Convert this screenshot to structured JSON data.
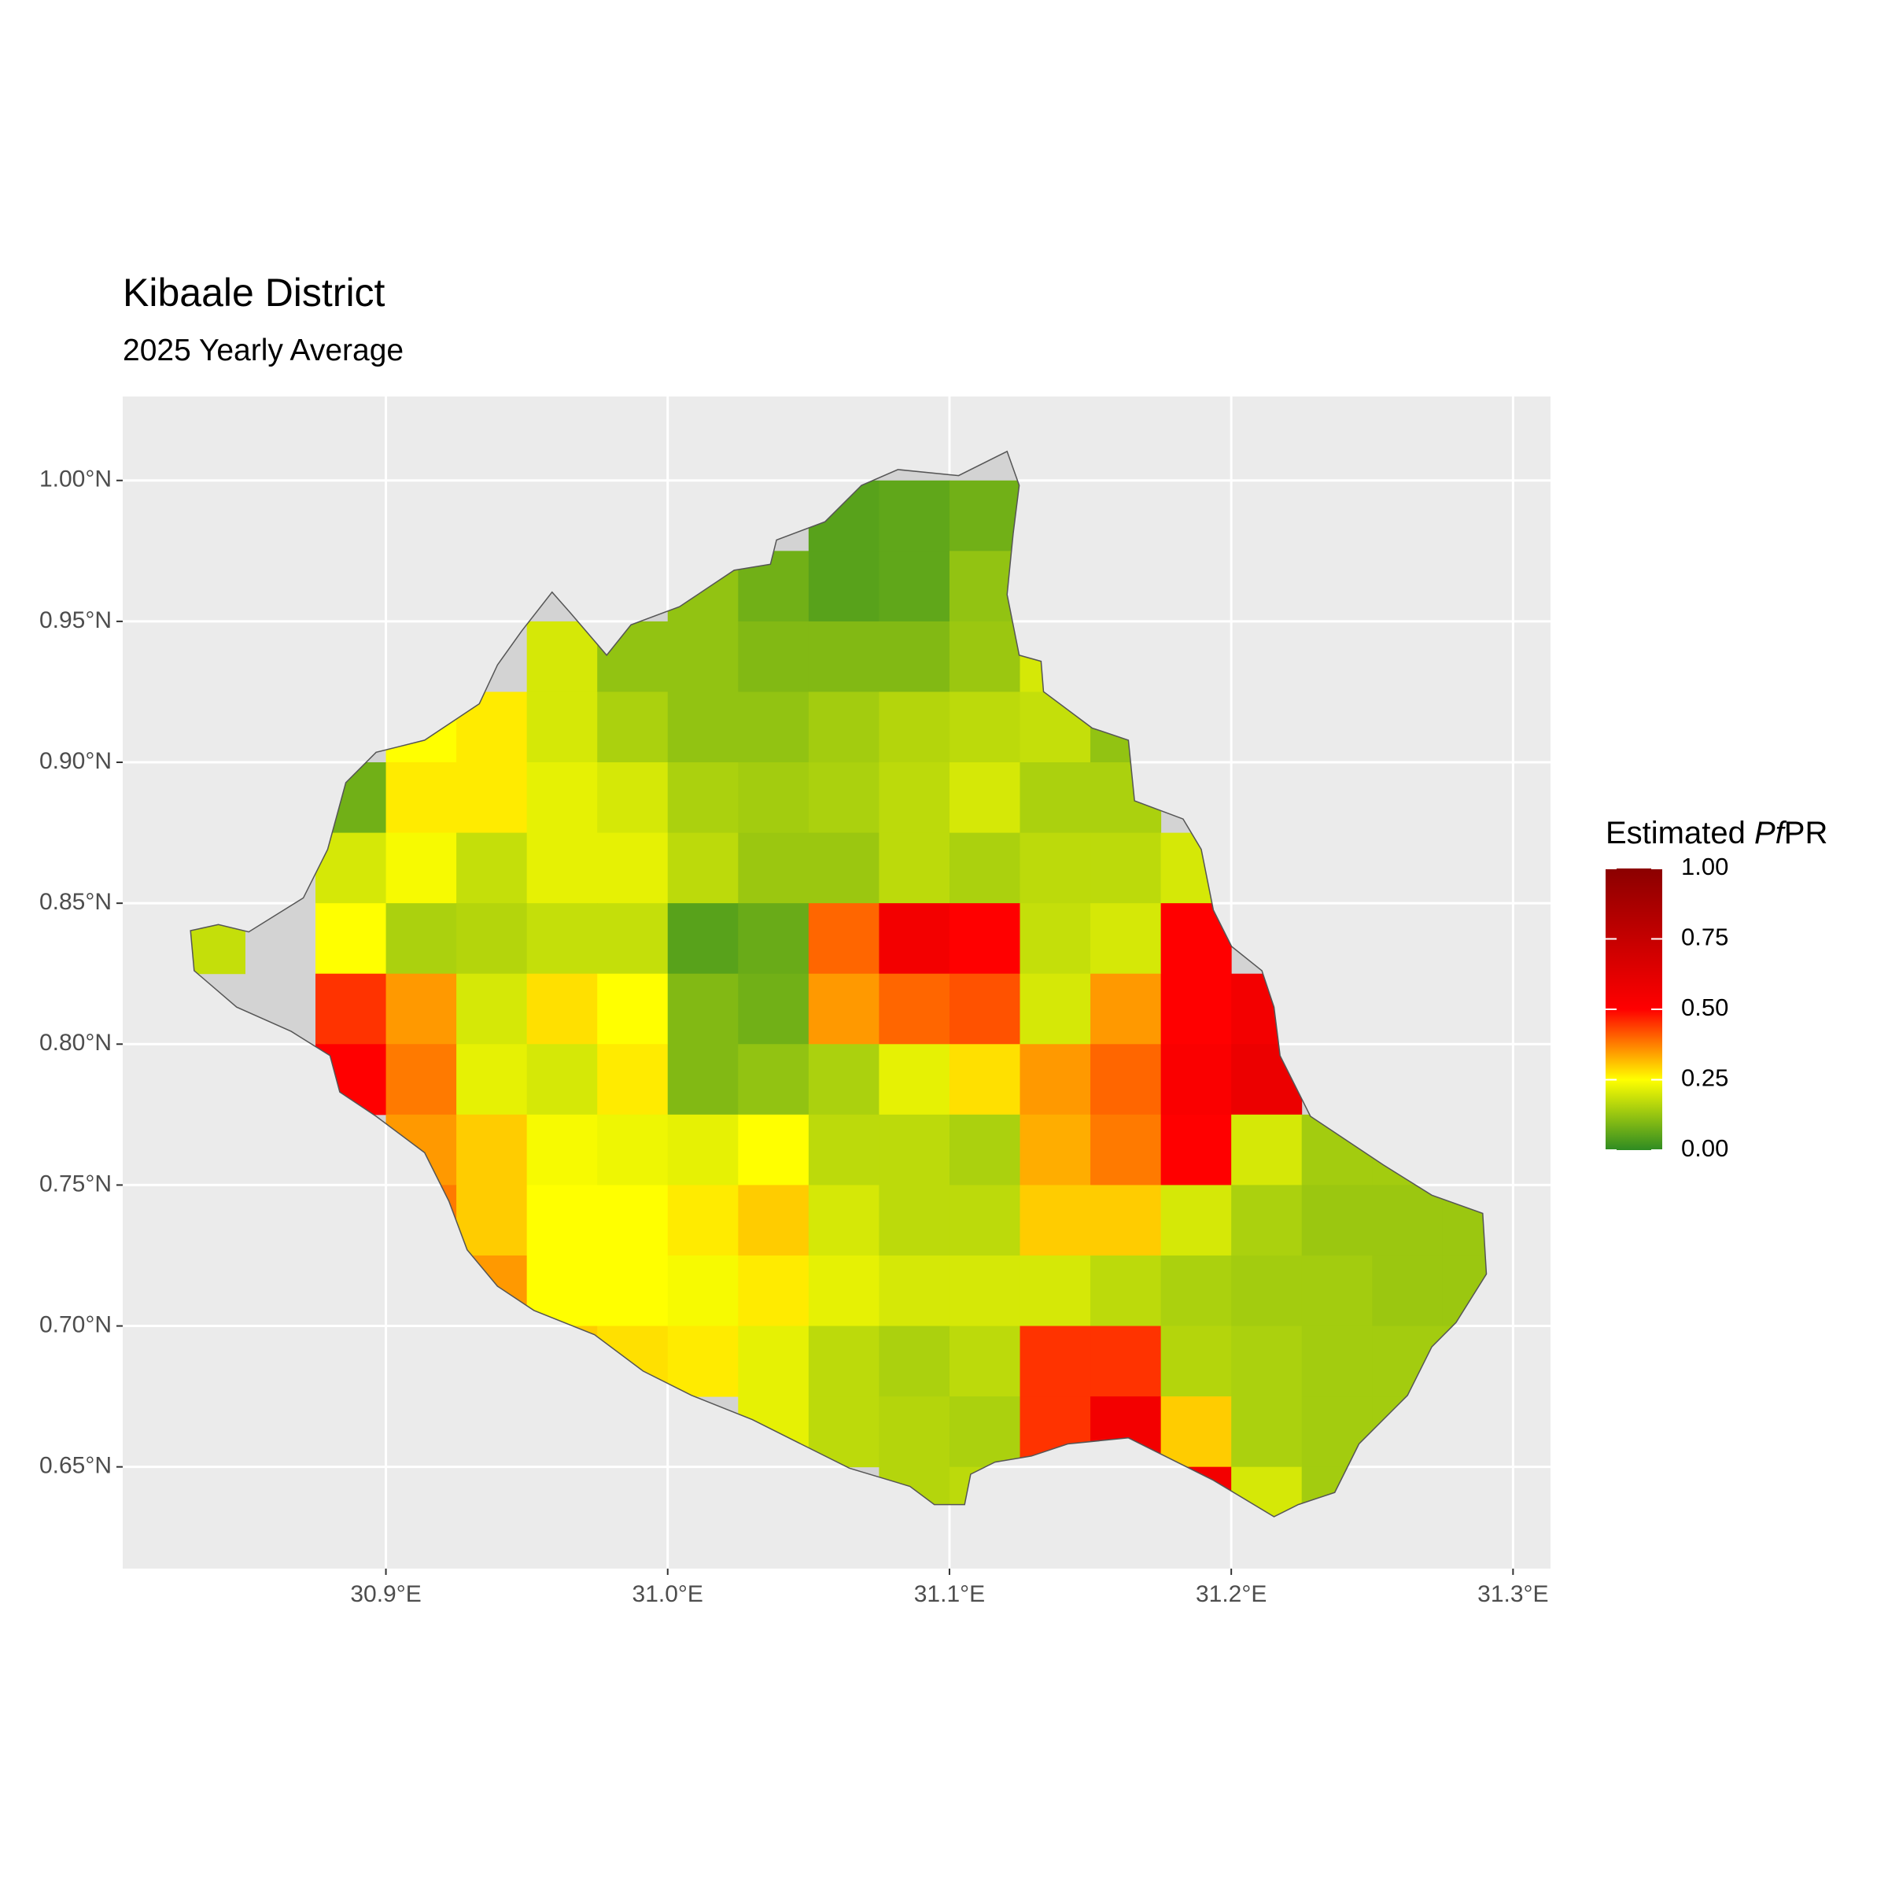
{
  "chart_data": {
    "type": "raster",
    "title": "Kibaale District",
    "subtitle": "2025 Yearly Average",
    "xlim": [
      30.8066,
      31.3133
    ],
    "ylim": [
      0.6139,
      1.0298
    ],
    "xticks": [
      {
        "value": 30.9,
        "label": "30.9°E"
      },
      {
        "value": 31.0,
        "label": "31.0°E"
      },
      {
        "value": 31.1,
        "label": "31.1°E"
      },
      {
        "value": 31.2,
        "label": "31.2°E"
      },
      {
        "value": 31.3,
        "label": "31.3°E"
      }
    ],
    "yticks": [
      {
        "value": 0.65,
        "label": "0.65°N"
      },
      {
        "value": 0.7,
        "label": "0.70°N"
      },
      {
        "value": 0.75,
        "label": "0.75°N"
      },
      {
        "value": 0.8,
        "label": "0.80°N"
      },
      {
        "value": 0.85,
        "label": "0.85°N"
      },
      {
        "value": 0.9,
        "label": "0.90°N"
      },
      {
        "value": 0.95,
        "label": "0.95°N"
      },
      {
        "value": 1.0,
        "label": "1.00°N"
      }
    ],
    "grid": true,
    "legend": {
      "title": {
        "prefix": "Estimated ",
        "italic": "Pf",
        "suffix": "PR"
      },
      "position": "right",
      "limits": [
        0,
        1
      ],
      "ticks": [
        {
          "value": 0,
          "label": "0.00"
        },
        {
          "value": 0.25,
          "label": "0.25"
        },
        {
          "value": 0.5,
          "label": "0.50"
        },
        {
          "value": 0.75,
          "label": "0.75"
        },
        {
          "value": 1,
          "label": "1.00"
        }
      ],
      "colorscale": [
        [
          0,
          "#2e8b22"
        ],
        [
          0.25,
          "#ffff00"
        ],
        [
          0.5,
          "#ff0000"
        ],
        [
          1,
          "#8b0000"
        ]
      ]
    },
    "grid_cells": {
      "cell_size": 0.025,
      "lon": [
        30.825,
        30.85,
        30.875,
        30.9,
        30.925,
        30.95,
        30.975,
        31.0,
        31.025,
        31.05,
        31.075,
        31.1,
        31.125,
        31.15,
        31.175,
        31.2,
        31.225,
        31.25,
        31.275
      ],
      "lat": [
        0.975,
        0.95,
        0.925,
        0.9,
        0.875,
        0.85,
        0.825,
        0.8,
        0.775,
        0.75,
        0.725,
        0.7,
        0.675,
        0.65,
        0.625
      ],
      "values": [
        [
          null,
          null,
          null,
          null,
          null,
          null,
          null,
          null,
          null,
          0.05,
          0.06,
          0.08,
          null,
          null,
          null,
          null,
          null,
          null,
          null
        ],
        [
          null,
          null,
          null,
          null,
          null,
          null,
          null,
          0.12,
          0.08,
          0.05,
          0.06,
          0.12,
          null,
          null,
          null,
          null,
          null,
          null,
          null
        ],
        [
          null,
          null,
          null,
          null,
          null,
          0.2,
          0.12,
          0.12,
          0.1,
          0.1,
          0.1,
          0.13,
          0.2,
          null,
          null,
          null,
          null,
          null,
          null
        ],
        [
          null,
          null,
          null,
          0.25,
          0.27,
          0.2,
          0.15,
          0.12,
          0.12,
          0.14,
          0.16,
          0.17,
          0.18,
          0.12,
          null,
          null,
          null,
          null,
          null
        ],
        [
          null,
          null,
          0.08,
          0.27,
          0.27,
          0.22,
          0.2,
          0.15,
          0.14,
          0.15,
          0.17,
          0.2,
          0.15,
          0.15,
          null,
          null,
          null,
          null,
          null
        ],
        [
          null,
          null,
          0.2,
          0.24,
          0.18,
          0.22,
          0.22,
          0.17,
          0.13,
          0.13,
          0.17,
          0.15,
          0.17,
          0.17,
          0.2,
          null,
          null,
          null,
          null
        ],
        [
          0.18,
          null,
          0.25,
          0.15,
          0.16,
          0.18,
          0.18,
          0.05,
          0.07,
          0.4,
          0.55,
          0.5,
          0.18,
          0.2,
          0.5,
          null,
          null,
          null,
          null
        ],
        [
          null,
          null,
          0.45,
          0.35,
          0.2,
          0.28,
          0.25,
          0.1,
          0.08,
          0.35,
          0.4,
          0.42,
          0.2,
          0.35,
          0.5,
          0.55,
          null,
          null,
          null
        ],
        [
          null,
          null,
          0.5,
          0.38,
          0.22,
          0.2,
          0.27,
          0.1,
          0.12,
          0.15,
          0.22,
          0.28,
          0.35,
          0.4,
          0.52,
          0.58,
          null,
          null,
          null
        ],
        [
          null,
          null,
          null,
          0.35,
          0.3,
          0.24,
          0.23,
          0.22,
          0.25,
          0.17,
          0.17,
          0.15,
          0.33,
          0.38,
          0.5,
          0.2,
          0.14,
          0.14,
          null
        ],
        [
          null,
          null,
          null,
          0.38,
          0.3,
          0.25,
          0.25,
          0.27,
          0.3,
          0.2,
          0.17,
          0.17,
          0.3,
          0.3,
          0.2,
          0.15,
          0.13,
          0.13,
          0.13
        ],
        [
          null,
          null,
          null,
          null,
          0.35,
          0.25,
          0.25,
          0.24,
          0.27,
          0.22,
          0.2,
          0.2,
          0.2,
          0.17,
          0.15,
          0.14,
          0.14,
          0.13,
          0.13
        ],
        [
          null,
          null,
          null,
          null,
          null,
          0.3,
          0.28,
          0.27,
          0.22,
          0.17,
          0.15,
          0.17,
          0.45,
          0.45,
          0.16,
          0.15,
          0.14,
          0.14,
          0.14
        ],
        [
          null,
          null,
          null,
          null,
          null,
          null,
          null,
          null,
          0.22,
          0.17,
          0.16,
          0.15,
          0.45,
          0.55,
          0.3,
          0.15,
          0.14,
          0.14,
          null
        ],
        [
          null,
          null,
          null,
          null,
          null,
          null,
          null,
          null,
          null,
          null,
          0.16,
          0.17,
          null,
          null,
          0.55,
          0.2,
          0.14,
          null,
          null
        ]
      ]
    }
  }
}
